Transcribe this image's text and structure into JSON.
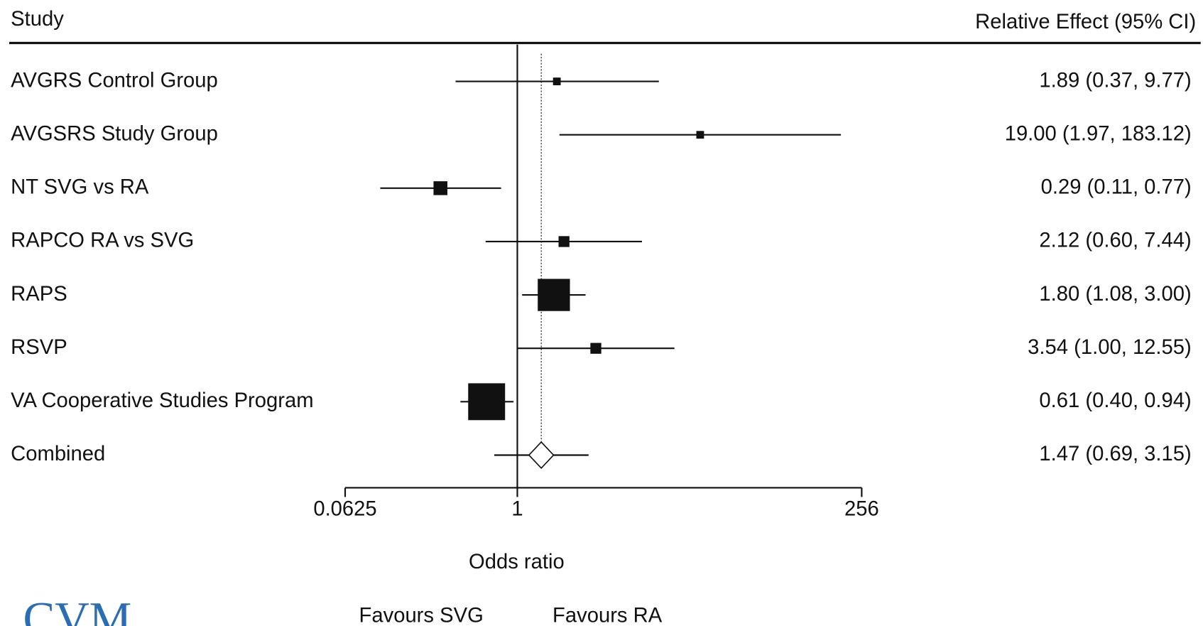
{
  "chart_data": {
    "type": "forest",
    "header_left": "Study",
    "header_right": "Relative Effect (95% CI)",
    "x_label": "Odds ratio",
    "favours_left": "Favours SVG",
    "favours_right": "Favours RA",
    "logo": "CVM",
    "categories": [
      "AVGRS Control Group",
      "AVGSRS Study Group",
      "NT SVG vs RA",
      "RAPCO RA vs SVG",
      "RAPS",
      "RSVP",
      "VA Cooperative Studies Program"
    ],
    "values": [
      1.89,
      19.0,
      0.29,
      2.12,
      1.8,
      3.54,
      0.61
    ],
    "lower": [
      0.37,
      1.97,
      0.11,
      0.6,
      1.08,
      1.0,
      0.4
    ],
    "upper": [
      9.77,
      183.12,
      0.77,
      7.44,
      3.0,
      12.55,
      0.94
    ],
    "value_labels": [
      "1.89 (0.37, 9.77)",
      "19.00 (1.97, 183.12)",
      "0.29 (0.11, 0.77)",
      "2.12 (0.60, 7.44)",
      "1.80 (1.08, 3.00)",
      "3.54 (1.00, 12.55)",
      "0.61 (0.40, 0.94)"
    ],
    "weights": [
      2,
      2,
      6.5,
      4,
      35,
      4,
      46
    ],
    "combined": {
      "name": "Combined",
      "value": 1.47,
      "lower": 0.69,
      "upper": 3.15,
      "value_label": "1.47 (0.69, 3.15)"
    },
    "xscale": "log",
    "log_base": 2,
    "xlim": [
      0.0625,
      256
    ],
    "xticks": [
      0.0625,
      1,
      256
    ],
    "color": "#111111"
  }
}
